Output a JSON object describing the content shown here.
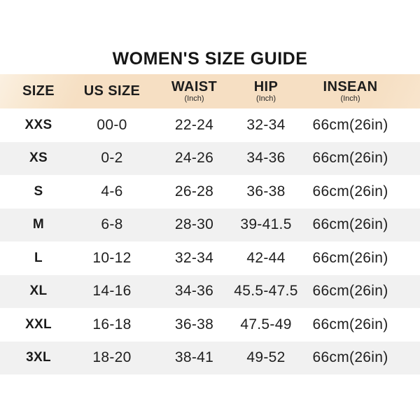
{
  "title": "WOMEN'S SIZE GUIDE",
  "colors": {
    "header_band": "#f6dfc3",
    "header_band_light": "#fbf0e1",
    "row_alt_gray": "#f1f1f1",
    "text": "#1b1b1b"
  },
  "table": {
    "headers": [
      {
        "label": "SIZE",
        "sub": ""
      },
      {
        "label": "US SIZE",
        "sub": ""
      },
      {
        "label": "WAIST",
        "sub": "(Inch)"
      },
      {
        "label": "HIP",
        "sub": "(Inch)"
      },
      {
        "label": "INSEAN",
        "sub": "(Inch)"
      }
    ],
    "rows": [
      {
        "size": "XXS",
        "us_size": "00-0",
        "waist": "22-24",
        "hip": "32-34",
        "insean": "66cm(26in)"
      },
      {
        "size": "XS",
        "us_size": "0-2",
        "waist": "24-26",
        "hip": "34-36",
        "insean": "66cm(26in)"
      },
      {
        "size": "S",
        "us_size": "4-6",
        "waist": "26-28",
        "hip": "36-38",
        "insean": "66cm(26in)"
      },
      {
        "size": "M",
        "us_size": "6-8",
        "waist": "28-30",
        "hip": "39-41.5",
        "insean": "66cm(26in)"
      },
      {
        "size": "L",
        "us_size": "10-12",
        "waist": "32-34",
        "hip": "42-44",
        "insean": "66cm(26in)"
      },
      {
        "size": "XL",
        "us_size": "14-16",
        "waist": "34-36",
        "hip": "45.5-47.5",
        "insean": "66cm(26in)"
      },
      {
        "size": "XXL",
        "us_size": "16-18",
        "waist": "36-38",
        "hip": "47.5-49",
        "insean": "66cm(26in)"
      },
      {
        "size": "3XL",
        "us_size": "18-20",
        "waist": "38-41",
        "hip": "49-52",
        "insean": "66cm(26in)"
      }
    ]
  }
}
